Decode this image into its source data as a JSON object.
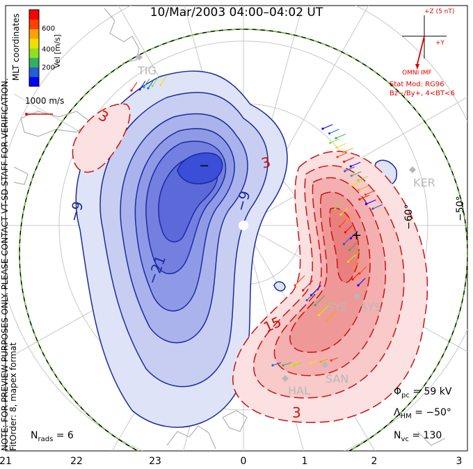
{
  "title": "10/Mar/2003 04:00–04:02 UT",
  "colorbar": {
    "label": "Vel [m/s]",
    "ticks": [
      "600",
      "400",
      "200"
    ],
    "colors": [
      "#0000ff",
      "#2060d0",
      "#30b060",
      "#90e020",
      "#f0e000",
      "#ffa000",
      "#ff4000",
      "#ff0000"
    ]
  },
  "coords_label": "MLT coordinates",
  "scale_vector": "1000 m/s",
  "imf": {
    "z_label": "+Z (5 nT)",
    "y_label": "+Y",
    "source": "OMNI IMF",
    "model_line1": "Stat Mod: RG96",
    "model_line2": "Bz−/By+, 4<BT<6"
  },
  "notes": {
    "preview": "NOTE: FOR PREVIEW PURPOSES ONLY. PLEASE CONTACT VT-SD STAFF FOR VERIFICATION.",
    "fit": "FitOrder: 8, mapex format"
  },
  "stats": {
    "phi_pc": "= 59 kV",
    "lambda_hm": "= −50°",
    "n_vc": "= 130",
    "n_rads": "= 6"
  },
  "stations": [
    "TIG",
    "KER",
    "SYE",
    "SYS",
    "SAN",
    "HAL"
  ],
  "contour_labels": [
    "−9",
    "−9",
    "−21",
    "3",
    "15",
    "3"
  ],
  "extrema": {
    "min": "−",
    "max": "+"
  },
  "lat_labels": [
    "−60°",
    "−50°"
  ],
  "mlt_ticks": [
    "21",
    "22",
    "23",
    "0",
    "1",
    "2",
    "3"
  ],
  "colors": {
    "negative": "#3a4ed8",
    "negative_line": "#1a2aa0",
    "positive": "#f08080",
    "positive_line": "#cc1010",
    "boundary": "#60d020",
    "grid": "#c8c8c8",
    "coast": "#b0b0b0"
  }
}
